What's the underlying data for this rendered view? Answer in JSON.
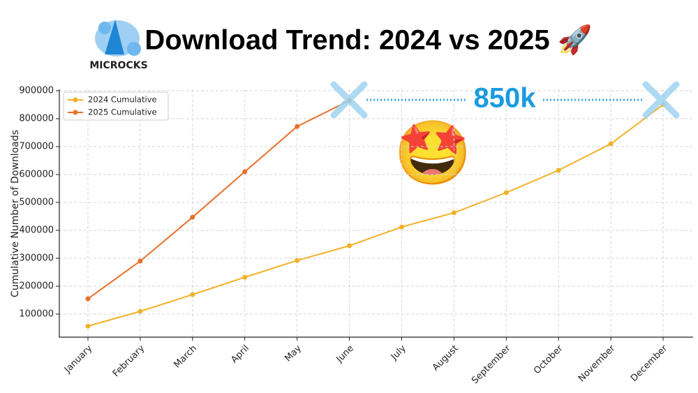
{
  "chart_data": {
    "type": "line",
    "title": "Download Trend: 2024 vs 2025 🚀",
    "logo_text": "MICROCKS",
    "y_label": "Cumulative Number of Downloads",
    "annotation": "850k",
    "emoji": "🤩",
    "categories": [
      "January",
      "February",
      "March",
      "April",
      "May",
      "June",
      "July",
      "August",
      "September",
      "October",
      "November",
      "December"
    ],
    "series": [
      {
        "name": "2024 Cumulative",
        "color": "#f2b128",
        "values": [
          57000,
          110000,
          170000,
          232000,
          292000,
          345000,
          412000,
          463000,
          535000,
          615000,
          710000,
          850000
        ]
      },
      {
        "name": "2025 Cumulative",
        "color": "#e8702a",
        "values": [
          155000,
          290000,
          447000,
          610000,
          772000,
          865000,
          null,
          null,
          null,
          null,
          null,
          null
        ]
      }
    ],
    "ylim": [
      17500,
      905000
    ],
    "yticks": [
      100000,
      200000,
      300000,
      400000,
      500000,
      600000,
      700000,
      800000,
      900000
    ],
    "grid": true,
    "legend": "upper left"
  }
}
